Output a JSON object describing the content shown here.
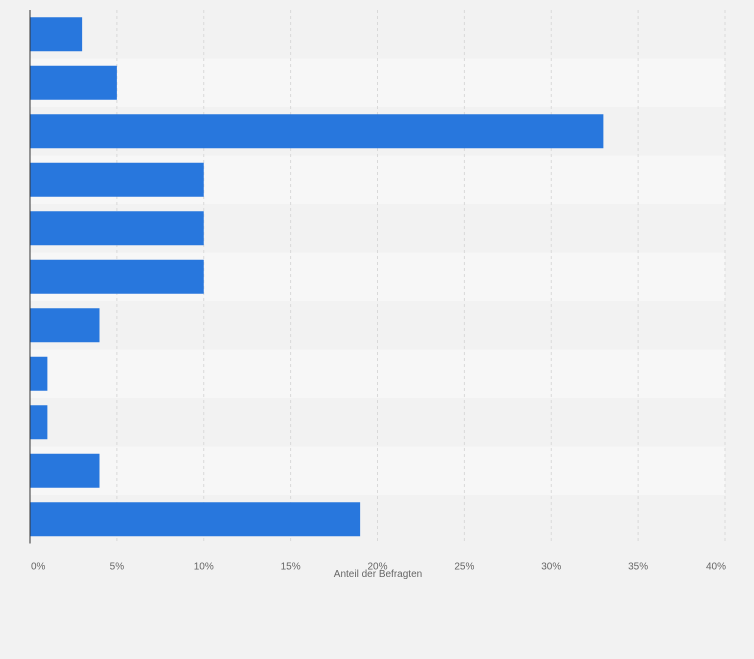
{
  "chart_data": {
    "type": "bar",
    "orientation": "horizontal",
    "values": [
      3,
      5,
      33,
      10,
      10,
      10,
      4,
      1,
      1,
      4,
      19
    ],
    "xlabel": "Anteil der Befragten",
    "ylabel": "",
    "xlim": [
      0,
      40
    ],
    "ticks": [
      0,
      5,
      10,
      15,
      20,
      25,
      30,
      35,
      40
    ],
    "tick_labels": [
      "0%",
      "5%",
      "10%",
      "15%",
      "20%",
      "25%",
      "30%",
      "35%",
      "40%"
    ],
    "grid": true,
    "legend": "none"
  },
  "colors": {
    "bar": "#2877dd",
    "band_dark": "#f2f2f2",
    "band_light": "#f7f7f7",
    "grid": "#d9d9d9",
    "axis": "#333333",
    "tick_text": "#666666"
  }
}
